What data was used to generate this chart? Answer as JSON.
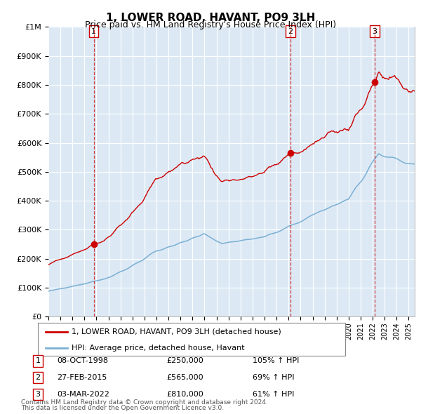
{
  "title": "1, LOWER ROAD, HAVANT, PO9 3LH",
  "subtitle": "Price paid vs. HM Land Registry's House Price Index (HPI)",
  "legend_red": "1, LOWER ROAD, HAVANT, PO9 3LH (detached house)",
  "legend_blue": "HPI: Average price, detached house, Havant",
  "transactions": [
    {
      "num": 1,
      "date": "08-OCT-1998",
      "year": 1998.77,
      "price": 250000,
      "pct": "105%",
      "dir": "↑"
    },
    {
      "num": 2,
      "date": "27-FEB-2015",
      "year": 2015.15,
      "price": 565000,
      "pct": "69%",
      "dir": "↑"
    },
    {
      "num": 3,
      "date": "03-MAR-2022",
      "year": 2022.17,
      "price": 810000,
      "pct": "61%",
      "dir": "↑"
    }
  ],
  "footer1": "Contains HM Land Registry data © Crown copyright and database right 2024.",
  "footer2": "This data is licensed under the Open Government Licence v3.0.",
  "xmin": 1995.0,
  "xmax": 2025.5,
  "ymin": 0,
  "ymax": 1000000,
  "background_color": "#dce9f5",
  "grid_color": "#c8d8e8",
  "red_color": "#cc0000",
  "blue_color": "#7bafd4",
  "title_fontsize": 11,
  "subtitle_fontsize": 9
}
